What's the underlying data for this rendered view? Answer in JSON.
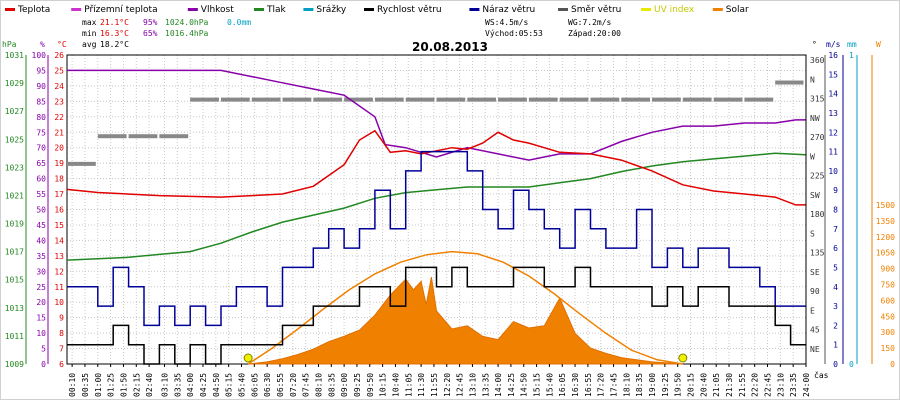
{
  "chart_data": {
    "type": "line",
    "title": "20.08.2013",
    "legend": [
      {
        "label": "Teplota",
        "color": "#e00000"
      },
      {
        "label": "Přízemní teplota",
        "color": "#cc33cc"
      },
      {
        "label": "Vlhkost",
        "color": "#8800aa"
      },
      {
        "label": "Tlak",
        "color": "#228822"
      },
      {
        "label": "Srážky",
        "color": "#00a0c0"
      },
      {
        "label": "Rychlost větru",
        "color": "#000000"
      },
      {
        "label": "Náraz větru",
        "color": "#000099"
      },
      {
        "label": "Směr větru",
        "color": "#555555"
      },
      {
        "label": "UV index",
        "color": "#e8e800"
      },
      {
        "label": "Solar",
        "color": "#f08000"
      }
    ],
    "stats": {
      "max_label": "max",
      "max_temp": "21.1°C",
      "max_hum": "95%",
      "max_press": "1024.0hPa",
      "max_rain": "0.0mm",
      "min_label": "min",
      "min_temp": "16.3°C",
      "min_hum": "65%",
      "min_press": "1016.4hPa",
      "avg_label": "avg",
      "avg_temp": "18.2°C",
      "ws": "WS:4.5m/s",
      "wg": "WG:7.2m/s",
      "sunrise": "Východ:05:53",
      "sunset": "Západ:20:00"
    },
    "axis_units": {
      "press": "hPa",
      "hum": "%",
      "temp": "°C",
      "dir": "°",
      "wind": "m/s",
      "rain": "mm",
      "solar": "W",
      "x": "čas"
    },
    "axes": {
      "pressure": {
        "labels": [
          "1031",
          "1029",
          "1027",
          "1025",
          "1023",
          "1021",
          "1019",
          "1017",
          "1015",
          "1013",
          "1011",
          "1009"
        ],
        "range": [
          1009,
          1031
        ]
      },
      "humidity": {
        "labels": [
          "100",
          "95",
          "90",
          "85",
          "80",
          "75",
          "70",
          "65",
          "60",
          "55",
          "50",
          "45",
          "40",
          "35",
          "30",
          "25",
          "20",
          "15",
          "10",
          "5",
          "0"
        ],
        "range": [
          0,
          100
        ]
      },
      "temperature": {
        "labels": [
          "26",
          "25",
          "24",
          "23",
          "22",
          "21",
          "20",
          "19",
          "18",
          "17",
          "16",
          "15",
          "14",
          "13",
          "12",
          "11",
          "10",
          "9",
          "8",
          "7",
          "6"
        ],
        "range": [
          6,
          26
        ]
      },
      "direction": {
        "labels": [
          "360",
          "N",
          "315",
          "NW",
          "270",
          "W",
          "225",
          "SW",
          "180",
          "S",
          "135",
          "SE",
          "90",
          "E",
          "45",
          "NE"
        ]
      },
      "wind": {
        "labels": [
          "16",
          "15",
          "14",
          "13",
          "12",
          "11",
          "10",
          "9",
          "8",
          "7",
          "6",
          "5",
          "4",
          "3",
          "2",
          "1",
          "0"
        ],
        "range": [
          0,
          16
        ]
      },
      "rain": {
        "labels": [
          "1",
          "0"
        ],
        "range": [
          0,
          1
        ]
      },
      "solar": {
        "labels": [
          "1500",
          "1350",
          "1200",
          "1050",
          "900",
          "750",
          "600",
          "450",
          "300",
          "150",
          "0"
        ],
        "range": [
          0,
          1500
        ]
      }
    },
    "x_ticks": [
      "00:10",
      "00:35",
      "01:00",
      "01:25",
      "01:50",
      "02:15",
      "02:40",
      "03:10",
      "03:35",
      "04:00",
      "04:25",
      "04:50",
      "05:15",
      "05:40",
      "06:05",
      "06:30",
      "06:55",
      "07:20",
      "07:45",
      "08:10",
      "08:35",
      "09:00",
      "09:25",
      "09:50",
      "10:15",
      "10:40",
      "11:05",
      "11:30",
      "11:55",
      "12:20",
      "12:45",
      "13:10",
      "13:35",
      "14:00",
      "14:25",
      "14:50",
      "15:15",
      "15:40",
      "16:05",
      "16:30",
      "16:55",
      "17:20",
      "17:45",
      "18:10",
      "18:35",
      "19:00",
      "19:25",
      "19:50",
      "20:15",
      "20:40",
      "21:05",
      "21:30",
      "21:55",
      "22:20",
      "22:45",
      "23:10",
      "23:35",
      "24:00"
    ],
    "series": [
      {
        "name": "Teplota",
        "unit": "°C",
        "times": [
          0,
          60,
          180,
          300,
          360,
          420,
          480,
          510,
          540,
          570,
          600,
          615,
          630,
          660,
          690,
          720,
          750,
          780,
          810,
          840,
          870,
          900,
          960,
          1020,
          1080,
          1140,
          1200,
          1260,
          1320,
          1380,
          1420,
          1439
        ],
        "values": [
          17.3,
          17.1,
          16.9,
          16.8,
          16.9,
          17.0,
          17.5,
          18.2,
          18.9,
          20.5,
          21.1,
          20.4,
          19.7,
          19.8,
          19.6,
          19.8,
          20.0,
          19.9,
          20.3,
          21.0,
          20.5,
          20.3,
          19.7,
          19.6,
          19.2,
          18.5,
          17.6,
          17.2,
          17.0,
          16.8,
          16.3,
          16.3
        ]
      },
      {
        "name": "Vlhkost",
        "unit": "%",
        "times": [
          0,
          300,
          360,
          420,
          480,
          540,
          600,
          620,
          660,
          720,
          780,
          840,
          900,
          960,
          1020,
          1080,
          1140,
          1200,
          1260,
          1320,
          1380,
          1420,
          1439
        ],
        "values": [
          95,
          95,
          93,
          91,
          89,
          87,
          80,
          71,
          70,
          67,
          70,
          68,
          66,
          68,
          68,
          72,
          75,
          77,
          77,
          78,
          78,
          79,
          79
        ]
      },
      {
        "name": "Tlak",
        "unit": "hPa",
        "times": [
          0,
          120,
          180,
          240,
          300,
          360,
          420,
          480,
          540,
          600,
          660,
          720,
          780,
          840,
          900,
          960,
          1020,
          1080,
          1140,
          1200,
          1260,
          1320,
          1380,
          1439
        ],
        "values": [
          1016.4,
          1016.6,
          1016.8,
          1017.0,
          1017.6,
          1018.4,
          1019.1,
          1019.6,
          1020.1,
          1020.8,
          1021.2,
          1021.4,
          1021.6,
          1021.6,
          1021.6,
          1021.9,
          1022.2,
          1022.7,
          1023.1,
          1023.4,
          1023.6,
          1023.8,
          1024.0,
          1023.9
        ]
      },
      {
        "name": "Rychlost větru",
        "unit": "m/s",
        "times": [
          0,
          30,
          60,
          90,
          120,
          150,
          180,
          210,
          240,
          270,
          300,
          330,
          360,
          390,
          420,
          450,
          480,
          510,
          540,
          570,
          600,
          630,
          660,
          690,
          720,
          750,
          780,
          810,
          840,
          870,
          900,
          930,
          960,
          990,
          1020,
          1050,
          1080,
          1110,
          1140,
          1170,
          1200,
          1230,
          1260,
          1290,
          1320,
          1350,
          1380,
          1410,
          1439
        ],
        "values": [
          1,
          1,
          1,
          2,
          1,
          0,
          1,
          0,
          1,
          0,
          1,
          1,
          1,
          1,
          2,
          2,
          3,
          3,
          3,
          4,
          4,
          3,
          5,
          5,
          4,
          5,
          4,
          4,
          4,
          5,
          5,
          4,
          4,
          5,
          4,
          4,
          4,
          4,
          3,
          4,
          3,
          4,
          4,
          3,
          3,
          3,
          2,
          1,
          1
        ]
      },
      {
        "name": "Náraz větru",
        "unit": "m/s",
        "times": [
          0,
          30,
          60,
          90,
          120,
          150,
          180,
          210,
          240,
          270,
          300,
          330,
          360,
          390,
          420,
          450,
          480,
          510,
          540,
          570,
          600,
          630,
          660,
          690,
          720,
          750,
          780,
          810,
          840,
          870,
          900,
          930,
          960,
          990,
          1020,
          1050,
          1080,
          1110,
          1140,
          1170,
          1200,
          1230,
          1260,
          1290,
          1320,
          1350,
          1380,
          1410,
          1439
        ],
        "values": [
          4,
          4,
          3,
          5,
          4,
          2,
          3,
          2,
          3,
          2,
          3,
          4,
          4,
          3,
          5,
          5,
          6,
          7,
          6,
          7,
          9,
          7,
          10,
          11,
          11,
          11,
          10,
          8,
          7,
          9,
          8,
          7,
          6,
          8,
          7,
          6,
          6,
          8,
          5,
          6,
          5,
          6,
          6,
          5,
          5,
          4,
          3,
          3,
          3
        ]
      },
      {
        "name": "Směr větru",
        "unit": "°",
        "times": [
          0,
          60,
          120,
          180,
          240,
          300,
          360,
          420,
          480,
          540,
          600,
          660,
          720,
          780,
          840,
          900,
          960,
          1020,
          1080,
          1140,
          1200,
          1260,
          1320,
          1380,
          1439
        ],
        "values": [
          236,
          270,
          270,
          270,
          315,
          315,
          315,
          315,
          315,
          315,
          315,
          315,
          315,
          315,
          315,
          315,
          315,
          315,
          315,
          315,
          315,
          315,
          315,
          336,
          336
        ]
      },
      {
        "name": "Solar",
        "unit": "W",
        "times": [
          353,
          390,
          420,
          450,
          480,
          510,
          540,
          570,
          600,
          630,
          660,
          675,
          690,
          700,
          710,
          720,
          750,
          780,
          810,
          840,
          870,
          900,
          930,
          960,
          990,
          1020,
          1050,
          1080,
          1110,
          1140,
          1170,
          1200
        ],
        "values": [
          0,
          20,
          50,
          90,
          140,
          210,
          260,
          320,
          460,
          650,
          800,
          700,
          780,
          560,
          820,
          500,
          330,
          360,
          260,
          230,
          400,
          340,
          360,
          620,
          290,
          150,
          100,
          60,
          40,
          20,
          10,
          0
        ]
      },
      {
        "name": "Solar theoretical",
        "unit": "W",
        "times": [
          353,
          400,
          450,
          500,
          550,
          600,
          650,
          700,
          750,
          800,
          850,
          900,
          950,
          1000,
          1050,
          1100,
          1150,
          1200
        ],
        "values": [
          0,
          150,
          330,
          520,
          700,
          850,
          960,
          1030,
          1060,
          1040,
          960,
          830,
          660,
          470,
          290,
          130,
          40,
          0
        ]
      }
    ],
    "sun_markers": [
      "05:53",
      "20:00"
    ]
  }
}
